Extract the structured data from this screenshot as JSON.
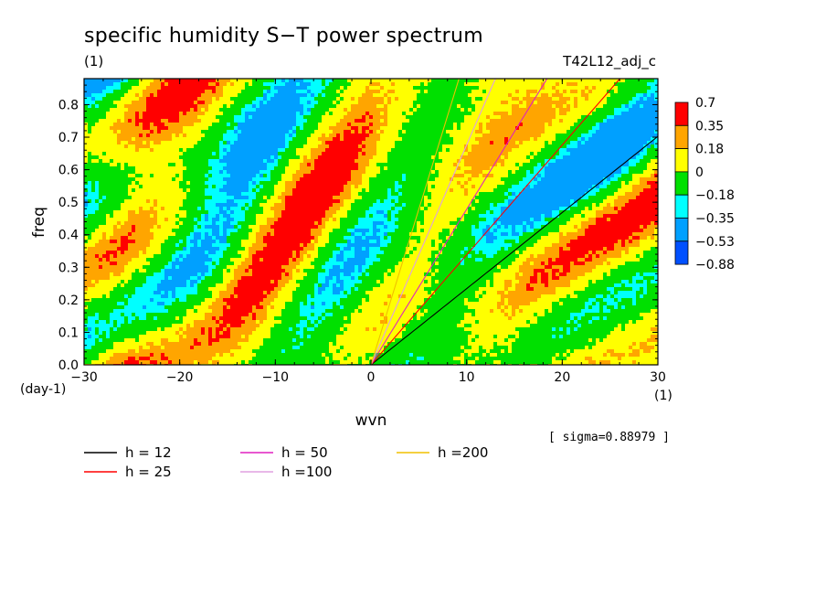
{
  "chart_data": {
    "type": "heatmap",
    "title": "specific humidity S−T power spectrum",
    "subtitle_left": "(1)",
    "subtitle_right": "T42L12_adj_c",
    "xlabel": "wvn",
    "ylabel": "freq",
    "x_unit": "(1)",
    "y_unit": "(day-1)",
    "xlim": [
      -30,
      30
    ],
    "ylim": [
      0,
      0.88
    ],
    "x_ticks": [
      -30,
      -20,
      -10,
      0,
      10,
      20,
      30
    ],
    "y_ticks": [
      0.0,
      0.1,
      0.2,
      0.3,
      0.4,
      0.5,
      0.6,
      0.7,
      0.8
    ],
    "sigma_note": "[ sigma=0.88979 ]",
    "colorbar": {
      "levels": [
        "0.7",
        "0.35",
        "0.18",
        "0",
        "−0.18",
        "−0.35",
        "−0.53",
        "−0.88"
      ],
      "colors": [
        "#ff0000",
        "#ffa500",
        "#ffff00",
        "#00e000",
        "#00ffff",
        "#00a0ff",
        "#0050ff"
      ]
    },
    "field_colors": {
      "red": "#ff0000",
      "orange": "#ffa500",
      "yellow": "#ffff00",
      "green": "#00e000",
      "cyan": "#00ffff",
      "lightblue": "#00a0ff",
      "blue": "#0050ff"
    },
    "dispersion_curves": [
      {
        "label": "h = 12",
        "h": 12,
        "color": "#000000"
      },
      {
        "label": "h = 25",
        "h": 25,
        "color": "#ff0000"
      },
      {
        "label": "h = 50",
        "h": 50,
        "color": "#e020c0"
      },
      {
        "label": "h =100",
        "h": 100,
        "color": "#e0a0e0"
      },
      {
        "label": "h =200",
        "h": 200,
        "color": "#f0c000"
      }
    ]
  }
}
